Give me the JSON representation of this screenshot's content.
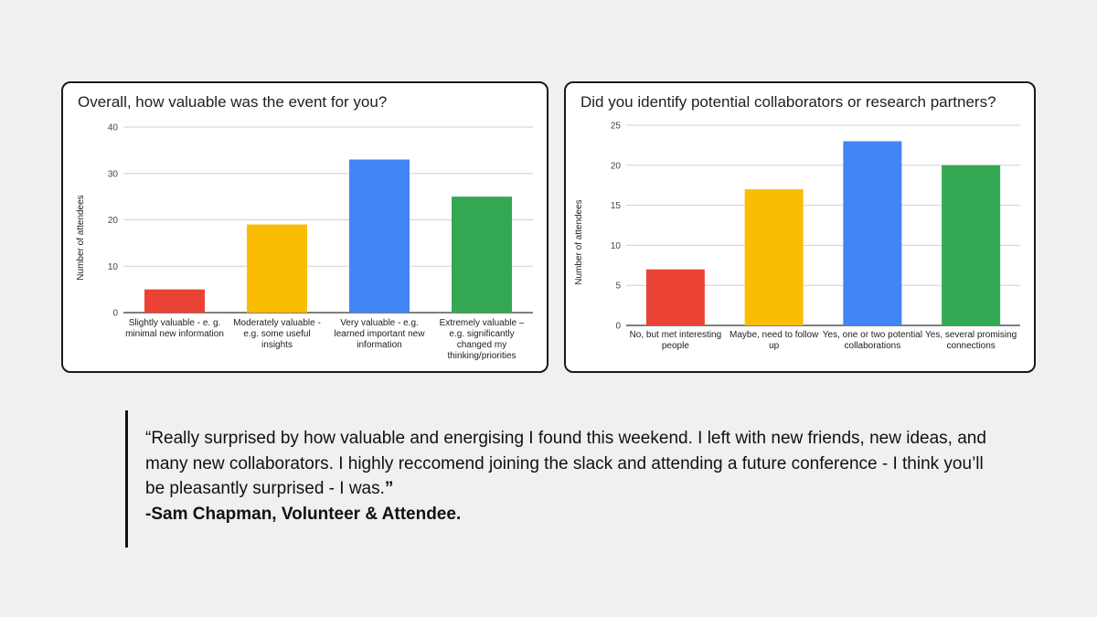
{
  "charts": [
    {
      "title": "Overall, how valuable was the event for you?",
      "ylabel": "Number of attendees"
    },
    {
      "title": "Did you identify potential collaborators or research partners?",
      "ylabel": "Number of attendees"
    }
  ],
  "chart_data": [
    {
      "type": "bar",
      "title": "Overall, how valuable was the event for you?",
      "xlabel": "",
      "ylabel": "Number of attendees",
      "ylim": [
        0,
        40
      ],
      "yticks": [
        0,
        10,
        20,
        30,
        40
      ],
      "grid": true,
      "categories": [
        "Slightly valuable - e. g. minimal new information",
        "Moderately valuable - e.g. some useful insights",
        "Very valuable - e.g. learned important new information",
        "Extremely valuable – e.g. significantly changed my thinking/priorities"
      ],
      "values": [
        5,
        19,
        33,
        25
      ],
      "colors": [
        "#ea4335",
        "#fbbc04",
        "#4285f4",
        "#34a853"
      ]
    },
    {
      "type": "bar",
      "title": "Did you identify potential collaborators or research partners?",
      "xlabel": "",
      "ylabel": "Number of attendees",
      "ylim": [
        0,
        25
      ],
      "yticks": [
        0,
        5,
        10,
        15,
        20,
        25
      ],
      "grid": true,
      "categories": [
        "No, but met interesting people",
        "Maybe, need to follow up",
        "Yes, one or two potential collaborations",
        "Yes, several promising connections"
      ],
      "values": [
        7,
        17,
        23,
        20
      ],
      "colors": [
        "#ea4335",
        "#fbbc04",
        "#4285f4",
        "#34a853"
      ]
    }
  ],
  "testimonial": {
    "quote": "“Really surprised by how valuable and energising I found this weekend. I left with new friends, new ideas, and many new collaborators. I highly reccomend joining the slack and attending a future conference - I think you’ll be pleasantly surprised - I was.",
    "close_mark": "”",
    "author": "-Sam Chapman, Volunteer & Attendee."
  }
}
